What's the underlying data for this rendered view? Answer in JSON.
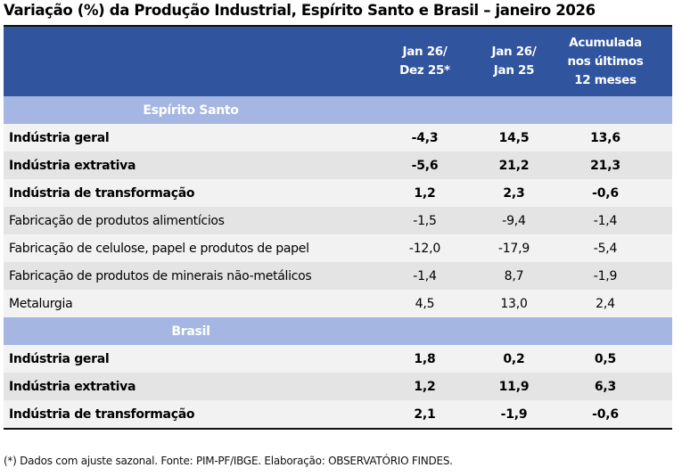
{
  "title": "Variação (%) da Produção Industrial, Espírito Santo e Brasil – janeiro 2026",
  "header": {
    "columns": [
      {
        "line1": "Jan 26/",
        "line2": "Dez 25*",
        "line3": ""
      },
      {
        "line1": "Jan 26/",
        "line2": "Jan 25",
        "line3": ""
      },
      {
        "line1": "Acumulada",
        "line2": "nos últimos",
        "line3": "12 meses"
      }
    ]
  },
  "sections": [
    {
      "name": "Espírito Santo",
      "rows": [
        {
          "label": "Indústria geral",
          "bold": true,
          "values": [
            "-4,3",
            "14,5",
            "13,6"
          ]
        },
        {
          "label": "Indústria extrativa",
          "bold": true,
          "values": [
            "-5,6",
            "21,2",
            "21,3"
          ]
        },
        {
          "label": "Indústria de transformação",
          "bold": true,
          "values": [
            "1,2",
            "2,3",
            "-0,6"
          ]
        },
        {
          "label": "Fabricação de produtos alimentícios",
          "bold": false,
          "values": [
            "-1,5",
            "-9,4",
            "-1,4"
          ]
        },
        {
          "label": "Fabricação de celulose, papel e produtos de papel",
          "bold": false,
          "values": [
            "-12,0",
            "-17,9",
            "-5,4"
          ]
        },
        {
          "label": "Fabricação de produtos de minerais não-metálicos",
          "bold": false,
          "values": [
            "-1,4",
            "8,7",
            "-1,9"
          ]
        },
        {
          "label": "Metalurgia",
          "bold": false,
          "values": [
            "4,5",
            "13,0",
            "2,4"
          ]
        }
      ]
    },
    {
      "name": "Brasil",
      "rows": [
        {
          "label": "Indústria geral",
          "bold": true,
          "values": [
            "1,8",
            "0,2",
            "0,5"
          ]
        },
        {
          "label": "Indústria extrativa",
          "bold": true,
          "values": [
            "1,2",
            "11,9",
            "6,3"
          ]
        },
        {
          "label": "Indústria de transformação",
          "bold": true,
          "values": [
            "2,1",
            "-1,9",
            "-0,6"
          ]
        }
      ]
    }
  ],
  "footnote": "(*) Dados com ajuste sazonal. Fonte: PIM-PF/IBGE. Elaboração: OBSERVATÓRIO FINDES.",
  "colors": {
    "header_bg": "#30549e",
    "section_bg": "#a4b6e1",
    "row_light": "#f2f2f2",
    "row_dark": "#e4e4e4"
  }
}
